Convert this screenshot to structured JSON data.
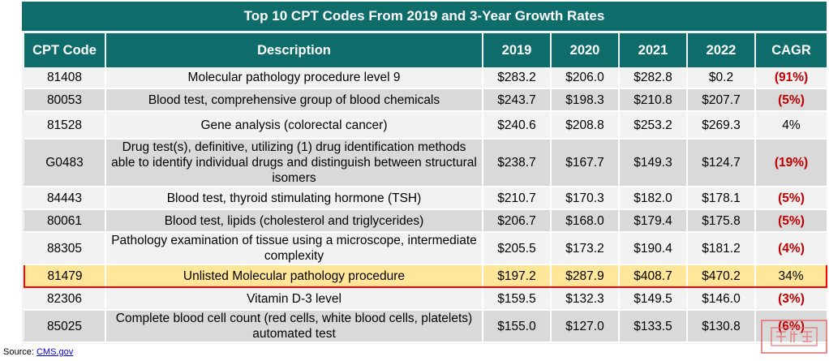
{
  "chart_data": {
    "type": "table",
    "title": "Top 10 CPT Codes From 2019 and 3-Year Growth Rates",
    "columns": [
      "CPT Code",
      "Description",
      "2019",
      "2020",
      "2021",
      "2022",
      "CAGR"
    ],
    "rows": [
      {
        "code": "81408",
        "desc": "Molecular pathology procedure level 9",
        "y2019": "$283.2",
        "y2020": "$206.0",
        "y2021": "$282.8",
        "y2022": "$0.2",
        "cagr": "(91%)",
        "negative": true
      },
      {
        "code": "80053",
        "desc": "Blood test, comprehensive group of blood chemicals",
        "y2019": "$243.7",
        "y2020": "$198.3",
        "y2021": "$210.8",
        "y2022": "$207.7",
        "cagr": "(5%)",
        "negative": true
      },
      {
        "code": "81528",
        "desc": "Gene analysis (colorectal cancer)",
        "y2019": "$240.6",
        "y2020": "$208.8",
        "y2021": "$253.2",
        "y2022": "$269.3",
        "cagr": "4%",
        "negative": false
      },
      {
        "code": "G0483",
        "desc": "Drug test(s), definitive, utilizing (1) drug identification methods able to identify individual drugs and distinguish between structural isomers",
        "y2019": "$238.7",
        "y2020": "$167.7",
        "y2021": "$149.3",
        "y2022": "$124.7",
        "cagr": "(19%)",
        "negative": true
      },
      {
        "code": "84443",
        "desc": "Blood test, thyroid stimulating hormone (TSH)",
        "y2019": "$210.7",
        "y2020": "$170.3",
        "y2021": "$182.0",
        "y2022": "$178.1",
        "cagr": "(5%)",
        "negative": true
      },
      {
        "code": "80061",
        "desc": "Blood test, lipids (cholesterol and triglycerides)",
        "y2019": "$206.7",
        "y2020": "$168.0",
        "y2021": "$179.4",
        "y2022": "$175.8",
        "cagr": "(5%)",
        "negative": true
      },
      {
        "code": "88305",
        "desc": "Pathology examination of tissue using a microscope, intermediate complexity",
        "y2019": "$205.5",
        "y2020": "$173.2",
        "y2021": "$190.4",
        "y2022": "$181.2",
        "cagr": "(4%)",
        "negative": true
      },
      {
        "code": "81479",
        "desc": "Unlisted Molecular pathology procedure",
        "y2019": "$197.2",
        "y2020": "$287.9",
        "y2021": "$408.7",
        "y2022": "$470.2",
        "cagr": "34%",
        "negative": false,
        "highlight": true
      },
      {
        "code": "82306",
        "desc": "Vitamin D-3 level",
        "y2019": "$159.5",
        "y2020": "$132.3",
        "y2021": "$149.5",
        "y2022": "$146.0",
        "cagr": "(3%)",
        "negative": true
      },
      {
        "code": "85025",
        "desc": "Complete blood cell count (red cells, white blood cells, platelets) automated test",
        "y2019": "$155.0",
        "y2020": "$127.0",
        "y2021": "$133.5",
        "y2022": "$130.8",
        "cagr": "(6%)",
        "negative": true
      }
    ]
  },
  "footer": {
    "source_label": "Source:",
    "source_link": "CMS.gov"
  },
  "colors": {
    "header": "#0e6d6b",
    "negative": "#c00000",
    "highlight_fill": "#ffe699",
    "highlight_border": "#ff0000"
  }
}
